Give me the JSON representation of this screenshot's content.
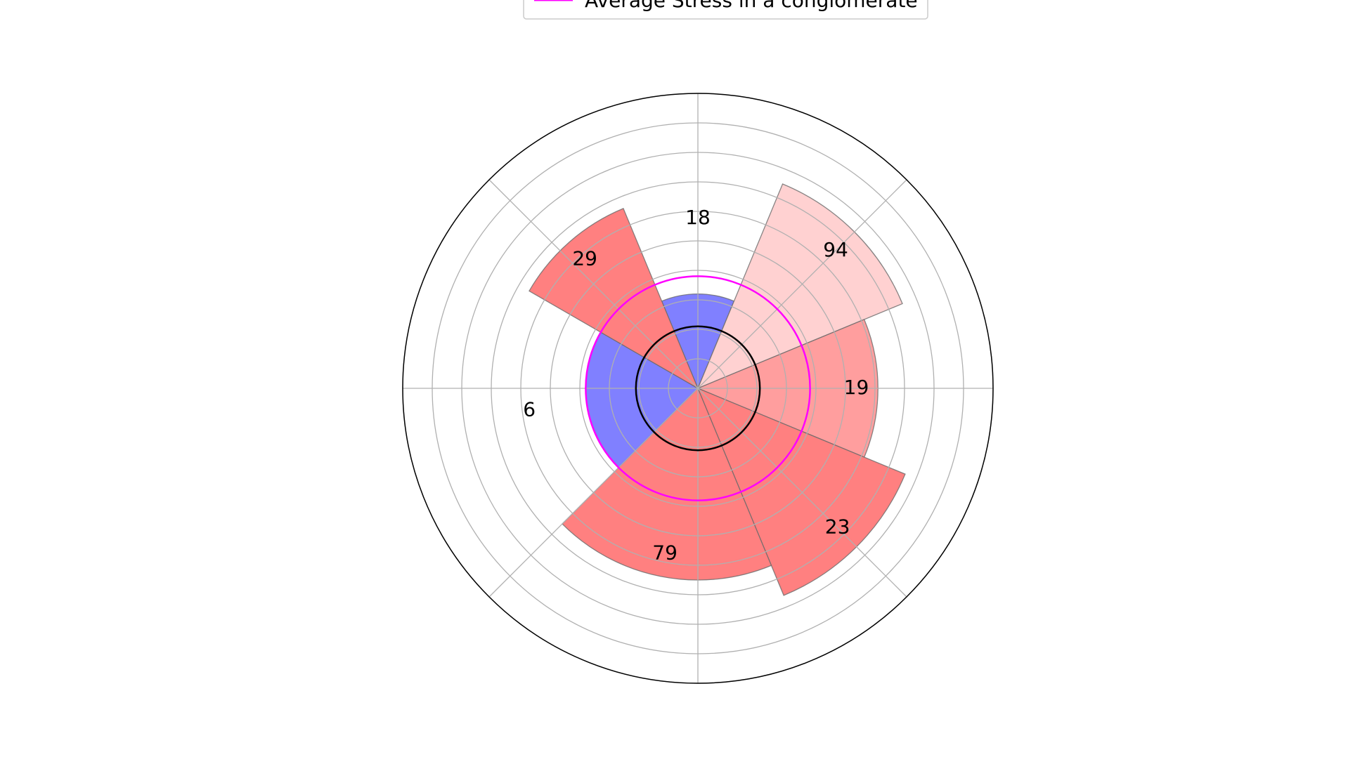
{
  "chart_data": {
    "type": "bar",
    "projection": "polar",
    "grid": true,
    "legend": {
      "placement": "top-center",
      "entries": [
        {
          "label": "Average Stress in a conglomerate",
          "color": "#ff00ff"
        }
      ]
    },
    "rmax": 100,
    "rticks": [
      10,
      20,
      30,
      40,
      50,
      60,
      70,
      80,
      90,
      100
    ],
    "reference_circles": [
      {
        "name": "average-stress",
        "value": 38,
        "color": "#ff00ff"
      },
      {
        "name": "black-reference",
        "value": 21,
        "color": "#000000"
      }
    ],
    "bars": [
      {
        "label": "18",
        "value": 32,
        "start_deg": 67.5,
        "end_deg": 112.5,
        "color": "#8080ff"
      },
      {
        "label": "94",
        "value": 75,
        "start_deg": 22.5,
        "end_deg": 67.5,
        "color": "#ffd1d1"
      },
      {
        "label": "19",
        "value": 61,
        "start_deg": -22.5,
        "end_deg": 22.5,
        "color": "#ff9e9e"
      },
      {
        "label": "23",
        "value": 76,
        "start_deg": -67.5,
        "end_deg": -22.5,
        "color": "#ff8080"
      },
      {
        "label": "79",
        "value": 65,
        "start_deg": -135,
        "end_deg": -67.5,
        "color": "#ff8080"
      },
      {
        "label": "6",
        "value": 38,
        "start_deg": 150,
        "end_deg": 225,
        "color": "#8080ff"
      },
      {
        "label": "29",
        "value": 66,
        "start_deg": 112.5,
        "end_deg": 150,
        "color": "#ff8080"
      }
    ]
  }
}
